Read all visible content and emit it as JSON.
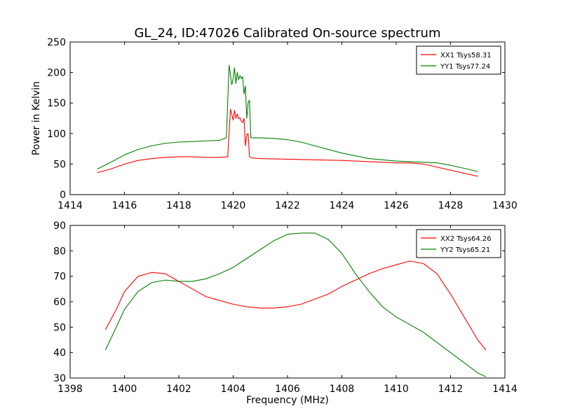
{
  "chart_data": [
    {
      "type": "line",
      "title": "GL_24, ID:47026 Calibrated On-source spectrum",
      "xlabel": "",
      "ylabel": "Power in Kelvin",
      "xlim": [
        1414,
        1430
      ],
      "ylim": [
        0,
        250
      ],
      "xticks": [
        1414,
        1416,
        1418,
        1420,
        1422,
        1424,
        1426,
        1428,
        1430
      ],
      "yticks": [
        0,
        50,
        100,
        150,
        200,
        250
      ],
      "grid": false,
      "legend": "top-right",
      "series": [
        {
          "name": "XX1 Tsys58.31",
          "color": "#ff0000",
          "x": [
            1415.0,
            1415.5,
            1416.0,
            1416.5,
            1417.0,
            1417.5,
            1418.0,
            1418.5,
            1419.0,
            1419.5,
            1419.8,
            1419.9,
            1420.0,
            1420.05,
            1420.1,
            1420.15,
            1420.2,
            1420.25,
            1420.3,
            1420.35,
            1420.4,
            1420.45,
            1420.5,
            1420.55,
            1420.6,
            1420.7,
            1421.0,
            1422.0,
            1423.0,
            1424.0,
            1425.0,
            1426.0,
            1426.5,
            1427.0,
            1427.5,
            1428.0,
            1428.5,
            1429.0
          ],
          "y": [
            36,
            42,
            50,
            56,
            59,
            61,
            62,
            62,
            61,
            61,
            62,
            140,
            122,
            138,
            125,
            132,
            124,
            126,
            120,
            118,
            125,
            80,
            98,
            100,
            62,
            60,
            59,
            58,
            57,
            56,
            54,
            52,
            52,
            50,
            45,
            40,
            35,
            30
          ]
        },
        {
          "name": "YY1 Tsys77.24",
          "color": "#008000",
          "x": [
            1415.0,
            1415.5,
            1416.0,
            1416.5,
            1417.0,
            1417.5,
            1418.0,
            1418.5,
            1419.0,
            1419.5,
            1419.75,
            1419.85,
            1419.95,
            1420.0,
            1420.05,
            1420.1,
            1420.15,
            1420.2,
            1420.25,
            1420.3,
            1420.35,
            1420.4,
            1420.45,
            1420.5,
            1420.55,
            1420.6,
            1420.65,
            1421.0,
            1421.5,
            1422.0,
            1422.5,
            1423.0,
            1424.0,
            1425.0,
            1426.0,
            1427.0,
            1427.5,
            1428.0,
            1428.5,
            1429.0
          ],
          "y": [
            42,
            53,
            65,
            74,
            80,
            84,
            86,
            87,
            88,
            89,
            93,
            212,
            180,
            190,
            208,
            182,
            200,
            188,
            195,
            190,
            193,
            165,
            178,
            125,
            150,
            155,
            93,
            93,
            92,
            90,
            86,
            80,
            68,
            59,
            55,
            53,
            52,
            48,
            43,
            38
          ]
        }
      ]
    },
    {
      "type": "line",
      "title": "",
      "xlabel": "Frequency (MHz)",
      "ylabel": "",
      "xlim": [
        1398,
        1414
      ],
      "ylim": [
        30,
        90
      ],
      "xticks": [
        1398,
        1400,
        1402,
        1404,
        1406,
        1408,
        1410,
        1412,
        1414
      ],
      "yticks": [
        30,
        40,
        50,
        60,
        70,
        80,
        90
      ],
      "grid": false,
      "legend": "top-right",
      "series": [
        {
          "name": "XX2 Tsys64.26",
          "color": "#ff0000",
          "x": [
            1399.3,
            1399.7,
            1400.0,
            1400.5,
            1401.0,
            1401.5,
            1402.0,
            1402.5,
            1403.0,
            1403.5,
            1404.0,
            1404.5,
            1405.0,
            1405.5,
            1406.0,
            1406.5,
            1407.0,
            1407.5,
            1408.0,
            1408.5,
            1409.0,
            1409.5,
            1410.0,
            1410.5,
            1411.0,
            1411.5,
            1412.0,
            1412.5,
            1413.0,
            1413.3
          ],
          "y": [
            49,
            57,
            64,
            70,
            71.5,
            71,
            68,
            65,
            62,
            60.5,
            59,
            58,
            57.5,
            57.5,
            58,
            59,
            61,
            63,
            66,
            68.5,
            71,
            73,
            74.5,
            76,
            75,
            71,
            63,
            54,
            45,
            41
          ]
        },
        {
          "name": "YY2 Tsys65.21",
          "color": "#008000",
          "x": [
            1399.3,
            1399.7,
            1400.0,
            1400.5,
            1401.0,
            1401.5,
            1402.0,
            1402.5,
            1403.0,
            1403.5,
            1404.0,
            1404.5,
            1405.0,
            1405.5,
            1406.0,
            1406.5,
            1407.0,
            1407.5,
            1408.0,
            1408.5,
            1409.0,
            1409.5,
            1410.0,
            1410.5,
            1411.0,
            1411.5,
            1412.0,
            1412.5,
            1413.0,
            1413.3
          ],
          "y": [
            41,
            50,
            57,
            64,
            67.5,
            68.5,
            68,
            68,
            69,
            71,
            73.5,
            77,
            80.5,
            84,
            86.5,
            87,
            87,
            84.5,
            79,
            71,
            64,
            58,
            54,
            51,
            48,
            44,
            40,
            36,
            32,
            30.5
          ]
        }
      ]
    }
  ]
}
